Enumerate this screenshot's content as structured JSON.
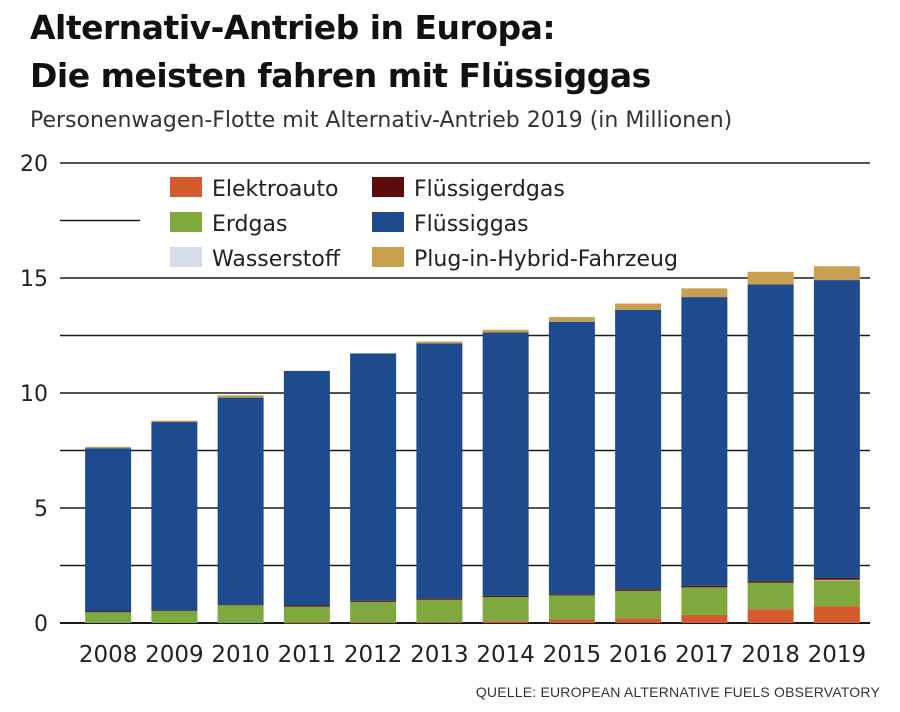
{
  "title_line1": "Alternativ-Antrieb in Europa:",
  "title_line2": "Die meisten fahren mit Flüssiggas",
  "subtitle": "Personenwagen-Flotte mit Alternativ-Antrieb 2019 (in Millionen)",
  "source": "QUELLE: EUROPEAN ALTERNATIVE FUELS OBSERVATORY",
  "colors": {
    "Elektroauto": "#d55a2c",
    "Erdgas": "#7fa93e",
    "Wasserstoff": "#d6dde8",
    "Flüssigerdgas": "#5e0b0b",
    "Flüssiggas": "#1d4b8e",
    "Plug-in-Hybrid-Fahrzeug": "#c8a050"
  },
  "chart_data": {
    "type": "bar",
    "stacked": true,
    "title": "Alternativ-Antrieb in Europa: Die meisten fahren mit Flüssiggas",
    "subtitle": "Personenwagen-Flotte mit Alternativ-Antrieb 2019 (in Millionen)",
    "xlabel": "",
    "ylabel": "",
    "ylim": [
      0,
      20
    ],
    "yticks": [
      "0",
      "5",
      "10",
      "15",
      "20"
    ],
    "grid": true,
    "legend_position": "top-left",
    "legend_order": [
      "Elektroauto",
      "Flüssigerdgas",
      "Erdgas",
      "Flüssiggas",
      "Wasserstoff",
      "Plug-in-Hybrid-Fahrzeug"
    ],
    "categories": [
      "2008",
      "2009",
      "2010",
      "2011",
      "2012",
      "2013",
      "2014",
      "2015",
      "2016",
      "2017",
      "2018",
      "2019"
    ],
    "series": [
      {
        "name": "Elektroauto",
        "values": [
          0.0,
          0.0,
          0.0,
          0.01,
          0.02,
          0.03,
          0.08,
          0.15,
          0.2,
          0.35,
          0.6,
          0.72
        ]
      },
      {
        "name": "Erdgas",
        "values": [
          0.48,
          0.53,
          0.78,
          0.7,
          0.9,
          0.98,
          1.05,
          1.05,
          1.2,
          1.2,
          1.15,
          1.15
        ]
      },
      {
        "name": "Wasserstoff",
        "values": [
          0.0,
          0.0,
          0.0,
          0.0,
          0.0,
          0.0,
          0.0,
          0.0,
          0.0,
          0.0,
          0.0,
          0.01
        ]
      },
      {
        "name": "Flüssigerdgas",
        "values": [
          0.02,
          0.02,
          0.02,
          0.05,
          0.05,
          0.05,
          0.05,
          0.05,
          0.07,
          0.07,
          0.07,
          0.08
        ]
      },
      {
        "name": "Flüssiggas",
        "values": [
          7.1,
          8.2,
          9.0,
          10.2,
          10.75,
          11.1,
          11.45,
          11.85,
          12.15,
          12.55,
          12.9,
          12.95
        ]
      },
      {
        "name": "Plug-in-Hybrid-Fahrzeug",
        "values": [
          0.06,
          0.05,
          0.1,
          0.0,
          0.0,
          0.08,
          0.12,
          0.2,
          0.27,
          0.38,
          0.55,
          0.6
        ]
      }
    ]
  }
}
